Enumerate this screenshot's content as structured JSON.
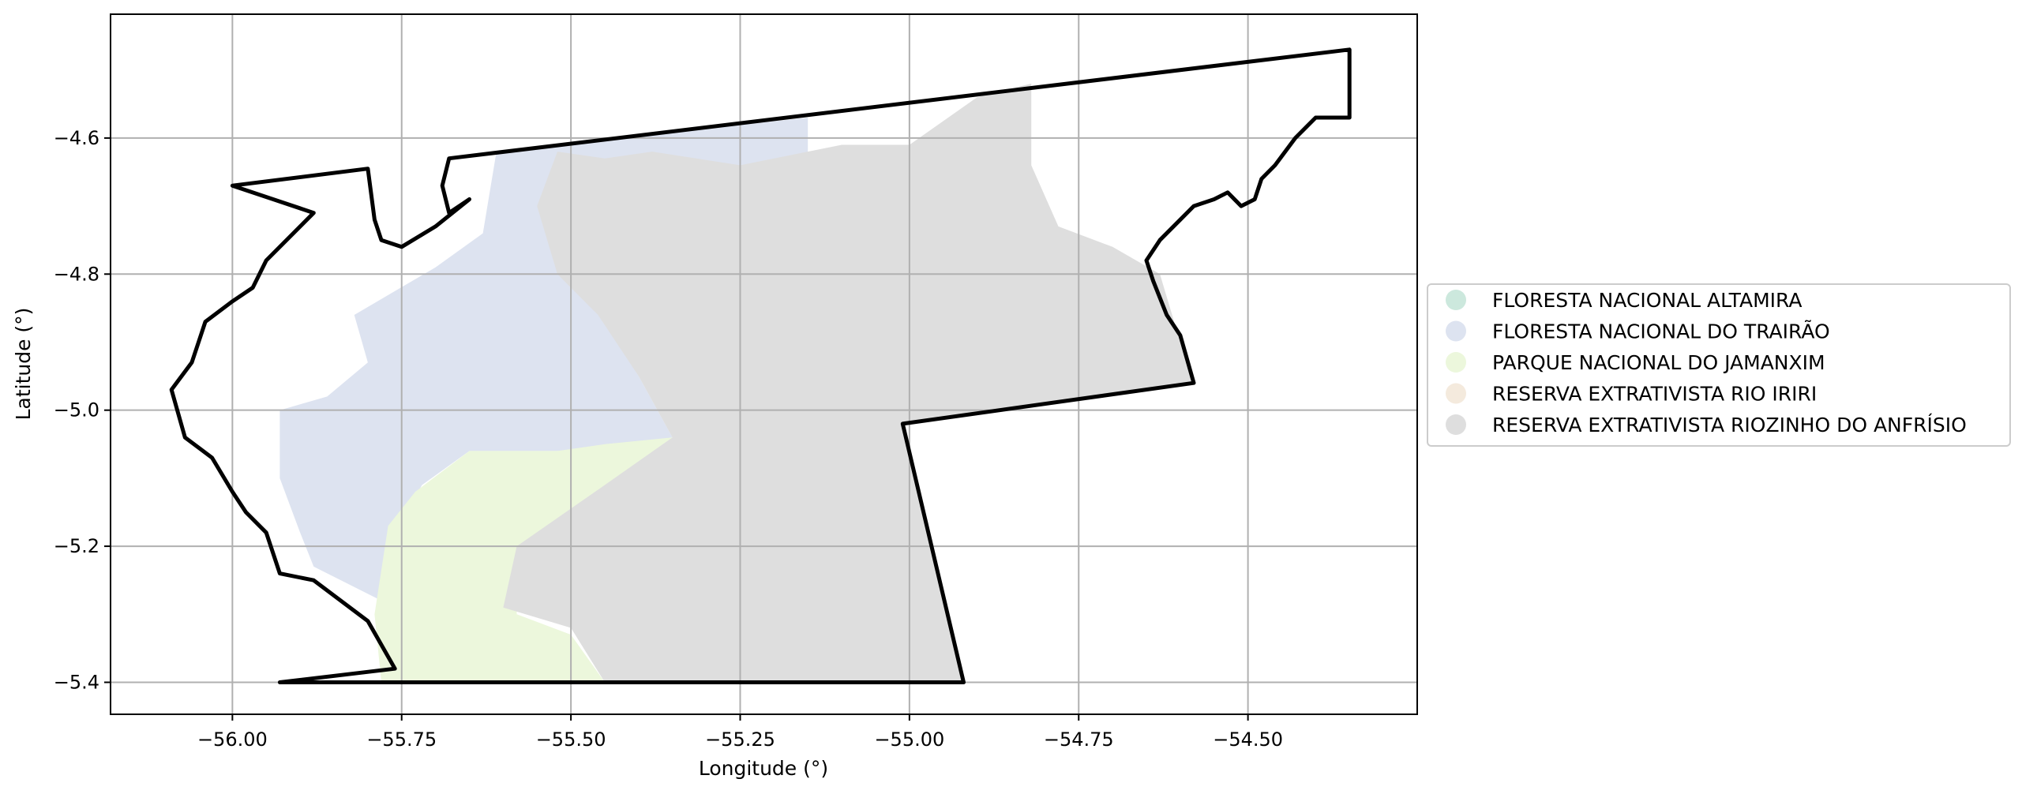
{
  "chart_data": {
    "type": "map",
    "xlabel": "Longitude (°)",
    "ylabel": "Latitude (°)",
    "xlim": [
      -56.18,
      -54.25
    ],
    "ylim": [
      -5.447,
      -4.418
    ],
    "grid": true,
    "x_ticks": [
      -56.0,
      -55.75,
      -55.5,
      -55.25,
      -55.0,
      -54.75,
      -54.5
    ],
    "x_tick_labels": [
      "−56.00",
      "−55.75",
      "−55.50",
      "−55.25",
      "−55.00",
      "−54.75",
      "−54.50"
    ],
    "y_ticks": [
      -4.6,
      -4.8,
      -5.0,
      -5.2,
      -5.4
    ],
    "y_tick_labels": [
      "−4.6",
      "−4.8",
      "−5.0",
      "−5.2",
      "−5.4"
    ],
    "legend_position": "center-right",
    "legend": [
      {
        "name": "FLORESTA NACIONAL ALTAMIRA",
        "color": "#cce8dd"
      },
      {
        "name": "FLORESTA NACIONAL DO TRAIRÃO",
        "color": "#dde3f0"
      },
      {
        "name": "PARQUE NACIONAL DO JAMANXIM",
        "color": "#ecf7dc"
      },
      {
        "name": "RESERVA EXTRATIVISTA RIO IRIRI",
        "color": "#f4eadd"
      },
      {
        "name": "RESERVA EXTRATIVISTA RIOZINHO DO ANFRÍSIO",
        "color": "#dedede"
      }
    ],
    "areas": [
      {
        "name": "FLORESTA NACIONAL DO TRAIRÃO",
        "color": "#dde3f0",
        "coords": [
          [
            -55.61,
            -4.62
          ],
          [
            -55.15,
            -4.57
          ],
          [
            -55.15,
            -4.63
          ],
          [
            -55.4,
            -4.69
          ],
          [
            -55.5,
            -4.77
          ],
          [
            -55.45,
            -4.87
          ],
          [
            -55.4,
            -4.95
          ],
          [
            -55.35,
            -5.04
          ],
          [
            -55.45,
            -5.06
          ],
          [
            -55.55,
            -5.06
          ],
          [
            -55.65,
            -5.06
          ],
          [
            -55.72,
            -5.11
          ],
          [
            -55.76,
            -5.18
          ],
          [
            -55.78,
            -5.28
          ],
          [
            -55.88,
            -5.23
          ],
          [
            -55.9,
            -5.18
          ],
          [
            -55.93,
            -5.1
          ],
          [
            -55.93,
            -5.0
          ],
          [
            -55.86,
            -4.98
          ],
          [
            -55.8,
            -4.93
          ],
          [
            -55.82,
            -4.86
          ],
          [
            -55.7,
            -4.79
          ],
          [
            -55.63,
            -4.74
          ],
          [
            -55.61,
            -4.62
          ]
        ]
      },
      {
        "name": "PARQUE NACIONAL DO JAMANXIM",
        "color": "#ecf7dc",
        "coords": [
          [
            -55.65,
            -5.06
          ],
          [
            -55.52,
            -5.06
          ],
          [
            -55.45,
            -5.05
          ],
          [
            -55.35,
            -5.04
          ],
          [
            -55.42,
            -5.09
          ],
          [
            -55.5,
            -5.17
          ],
          [
            -55.58,
            -5.2
          ],
          [
            -55.58,
            -5.3
          ],
          [
            -55.5,
            -5.33
          ],
          [
            -55.45,
            -5.4
          ],
          [
            -55.78,
            -5.4
          ],
          [
            -55.79,
            -5.3
          ],
          [
            -55.77,
            -5.17
          ],
          [
            -55.73,
            -5.12
          ],
          [
            -55.65,
            -5.06
          ]
        ]
      },
      {
        "name": "RESERVA EXTRATIVISTA RIOZINHO DO ANFRÍSIO",
        "color": "#dedede",
        "coords": [
          [
            -55.52,
            -4.62
          ],
          [
            -55.45,
            -4.63
          ],
          [
            -55.38,
            -4.62
          ],
          [
            -55.25,
            -4.64
          ],
          [
            -55.15,
            -4.62
          ],
          [
            -55.1,
            -4.61
          ],
          [
            -55.0,
            -4.61
          ],
          [
            -54.9,
            -4.54
          ],
          [
            -54.82,
            -4.52
          ],
          [
            -54.82,
            -4.64
          ],
          [
            -54.78,
            -4.73
          ],
          [
            -54.7,
            -4.76
          ],
          [
            -54.63,
            -4.8
          ],
          [
            -54.6,
            -4.9
          ],
          [
            -54.58,
            -4.96
          ],
          [
            -55.01,
            -5.02
          ],
          [
            -54.92,
            -5.4
          ],
          [
            -55.45,
            -5.4
          ],
          [
            -55.5,
            -5.32
          ],
          [
            -55.6,
            -5.29
          ],
          [
            -55.58,
            -5.2
          ],
          [
            -55.45,
            -5.11
          ],
          [
            -55.35,
            -5.04
          ],
          [
            -55.4,
            -4.95
          ],
          [
            -55.46,
            -4.86
          ],
          [
            -55.52,
            -4.8
          ],
          [
            -55.55,
            -4.7
          ],
          [
            -55.52,
            -4.62
          ]
        ]
      }
    ],
    "boundary": [
      [
        -55.93,
        -5.4
      ],
      [
        -55.76,
        -5.38
      ],
      [
        -55.8,
        -5.31
      ],
      [
        -55.88,
        -5.25
      ],
      [
        -55.93,
        -5.24
      ],
      [
        -55.95,
        -5.18
      ],
      [
        -55.98,
        -5.15
      ],
      [
        -56.0,
        -5.12
      ],
      [
        -56.03,
        -5.07
      ],
      [
        -56.07,
        -5.04
      ],
      [
        -56.09,
        -4.97
      ],
      [
        -56.06,
        -4.93
      ],
      [
        -56.05,
        -4.9
      ],
      [
        -56.04,
        -4.87
      ],
      [
        -56.0,
        -4.84
      ],
      [
        -55.97,
        -4.82
      ],
      [
        -55.95,
        -4.78
      ],
      [
        -55.88,
        -4.71
      ],
      [
        -56.0,
        -4.67
      ],
      [
        -55.8,
        -4.645
      ],
      [
        -55.79,
        -4.72
      ],
      [
        -55.78,
        -4.75
      ],
      [
        -55.75,
        -4.76
      ],
      [
        -55.7,
        -4.73
      ],
      [
        -55.65,
        -4.69
      ],
      [
        -55.68,
        -4.71
      ],
      [
        -55.69,
        -4.67
      ],
      [
        -55.68,
        -4.63
      ],
      [
        -54.35,
        -4.47
      ],
      [
        -54.35,
        -4.57
      ],
      [
        -54.4,
        -4.57
      ],
      [
        -54.43,
        -4.6
      ],
      [
        -54.46,
        -4.64
      ],
      [
        -54.48,
        -4.66
      ],
      [
        -54.49,
        -4.69
      ],
      [
        -54.51,
        -4.7
      ],
      [
        -54.53,
        -4.68
      ],
      [
        -54.55,
        -4.69
      ],
      [
        -54.58,
        -4.7
      ],
      [
        -54.6,
        -4.72
      ],
      [
        -54.63,
        -4.75
      ],
      [
        -54.65,
        -4.78
      ],
      [
        -54.64,
        -4.81
      ],
      [
        -54.62,
        -4.86
      ],
      [
        -54.6,
        -4.89
      ],
      [
        -54.58,
        -4.96
      ],
      [
        -55.01,
        -5.02
      ],
      [
        -54.92,
        -5.4
      ],
      [
        -55.93,
        -5.4
      ]
    ]
  }
}
